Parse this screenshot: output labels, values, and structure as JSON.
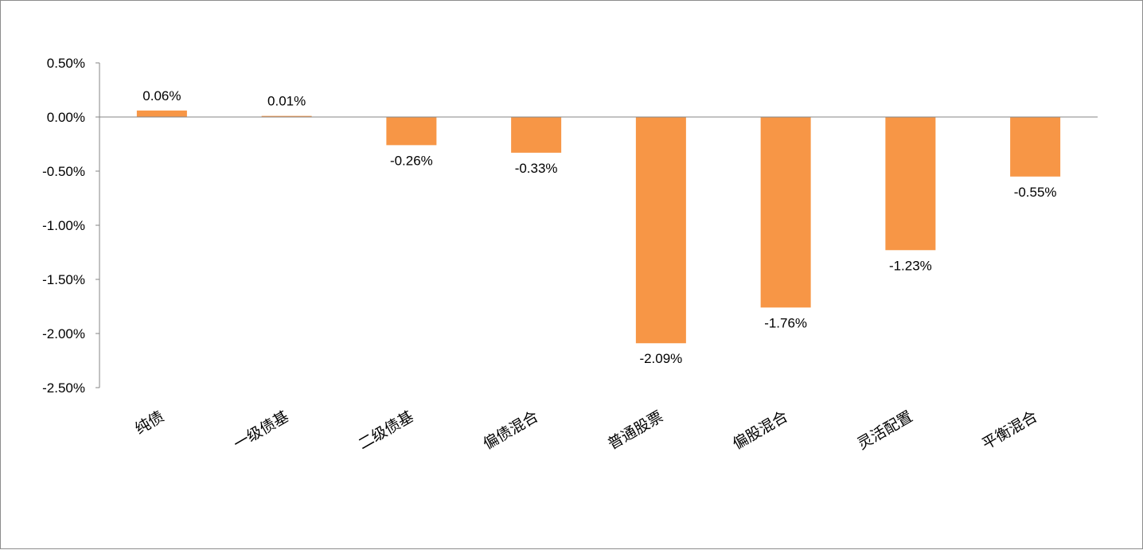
{
  "chart_data": {
    "type": "bar",
    "categories": [
      "纯债",
      "一级债基",
      "二级债基",
      "偏债混合",
      "普通股票",
      "偏股混合",
      "灵活配置",
      "平衡混合"
    ],
    "values": [
      0.06,
      0.01,
      -0.26,
      -0.33,
      -2.09,
      -1.76,
      -1.23,
      -0.55
    ],
    "data_labels": [
      "0.06%",
      "0.01%",
      "-0.26%",
      "-0.33%",
      "-2.09%",
      "-1.76%",
      "-1.23%",
      "-0.55%"
    ],
    "y_ticks": [
      0.5,
      0.0,
      -0.5,
      -1.0,
      -1.5,
      -2.0,
      -2.5
    ],
    "y_tick_labels": [
      "0.50%",
      "0.00%",
      "-0.50%",
      "-1.00%",
      "-1.50%",
      "-2.00%",
      "-2.50%"
    ],
    "ylim": [
      -2.5,
      0.5
    ],
    "title": "",
    "xlabel": "",
    "ylabel": "",
    "grid": false,
    "legend": "none",
    "bar_color": "#F79646",
    "axis_color": "#868686"
  }
}
